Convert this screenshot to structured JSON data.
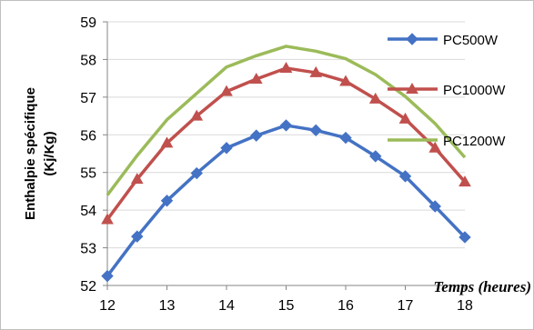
{
  "chart_data": {
    "type": "line",
    "title": "",
    "ylabel": "Enthalpie spécifique (Kj/Kg)",
    "xlabel": "Temps (heures)",
    "x": [
      12,
      12.5,
      13,
      13.5,
      14,
      14.5,
      15,
      15.5,
      16,
      16.5,
      17,
      17.5,
      18
    ],
    "xlim": [
      12,
      18
    ],
    "ylim": [
      52,
      59
    ],
    "xticks": [
      "12",
      "13",
      "14",
      "15",
      "16",
      "17",
      "18"
    ],
    "yticks": [
      "52",
      "53",
      "54",
      "55",
      "56",
      "57",
      "58",
      "59"
    ],
    "grid": "horizontal",
    "legend_position": "right",
    "series": [
      {
        "name": "PC500W",
        "color": "#4472C4",
        "marker": "diamond",
        "values": [
          52.25,
          53.3,
          54.25,
          54.98,
          55.65,
          55.98,
          56.25,
          56.12,
          55.92,
          55.43,
          54.9,
          54.1,
          53.28
        ]
      },
      {
        "name": "PC1000W",
        "color": "#C0504D",
        "marker": "triangle",
        "values": [
          53.75,
          54.82,
          55.78,
          56.5,
          57.15,
          57.48,
          57.77,
          57.65,
          57.42,
          56.95,
          56.42,
          55.65,
          54.75
        ]
      },
      {
        "name": "PC1200W",
        "color": "#9BBB59",
        "marker": "none",
        "values": [
          54.4,
          55.45,
          56.4,
          57.1,
          57.8,
          58.1,
          58.35,
          58.22,
          58.02,
          57.6,
          57.02,
          56.3,
          55.4
        ]
      }
    ]
  }
}
